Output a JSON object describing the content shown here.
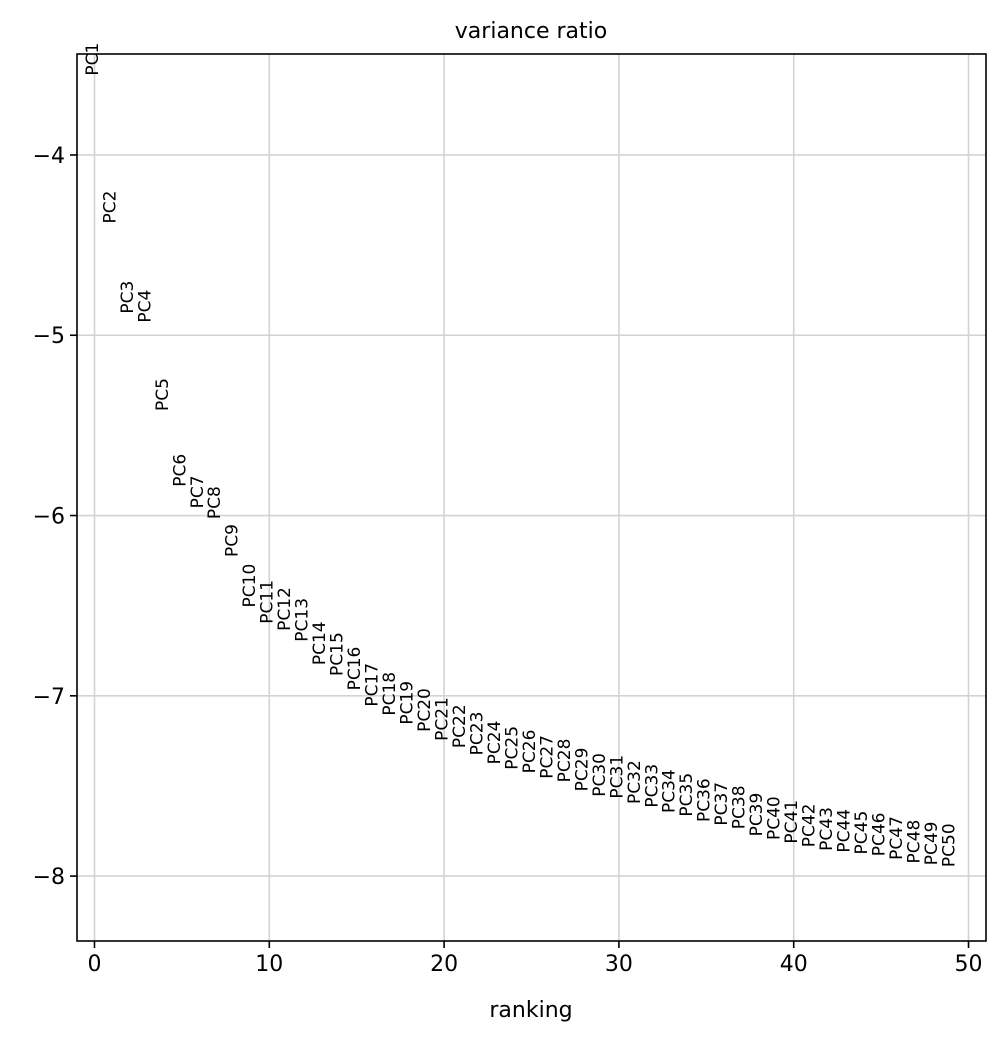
{
  "chart_data": {
    "type": "scatter",
    "title": "variance ratio",
    "xlabel": "ranking",
    "ylabel": "",
    "xlim": [
      -1,
      51
    ],
    "ylim": [
      -8.36,
      -3.44
    ],
    "x_ticks": [
      0,
      10,
      20,
      30,
      40,
      50
    ],
    "x_tick_labels": [
      "0",
      "10",
      "20",
      "30",
      "40",
      "50"
    ],
    "y_ticks": [
      -4,
      -5,
      -6,
      -7,
      -8
    ],
    "y_tick_labels": [
      "−4",
      "−5",
      "−6",
      "−7",
      "−8"
    ],
    "grid": true,
    "colors": {
      "grid": "#d3d3d3",
      "axis": "#000000",
      "text": "#000000"
    },
    "points": [
      {
        "x": 0,
        "y": -3.56,
        "label": "PC1"
      },
      {
        "x": 1,
        "y": -4.38,
        "label": "PC2"
      },
      {
        "x": 2,
        "y": -4.88,
        "label": "PC3"
      },
      {
        "x": 3,
        "y": -4.93,
        "label": "PC4"
      },
      {
        "x": 4,
        "y": -5.42,
        "label": "PC5"
      },
      {
        "x": 5,
        "y": -5.84,
        "label": "PC6"
      },
      {
        "x": 6,
        "y": -5.96,
        "label": "PC7"
      },
      {
        "x": 7,
        "y": -6.02,
        "label": "PC8"
      },
      {
        "x": 8,
        "y": -6.23,
        "label": "PC9"
      },
      {
        "x": 9,
        "y": -6.51,
        "label": "PC10"
      },
      {
        "x": 10,
        "y": -6.6,
        "label": "PC11"
      },
      {
        "x": 11,
        "y": -6.64,
        "label": "PC12"
      },
      {
        "x": 12,
        "y": -6.7,
        "label": "PC13"
      },
      {
        "x": 13,
        "y": -6.83,
        "label": "PC14"
      },
      {
        "x": 14,
        "y": -6.89,
        "label": "PC15"
      },
      {
        "x": 15,
        "y": -6.97,
        "label": "PC16"
      },
      {
        "x": 16,
        "y": -7.06,
        "label": "PC17"
      },
      {
        "x": 17,
        "y": -7.11,
        "label": "PC18"
      },
      {
        "x": 18,
        "y": -7.16,
        "label": "PC19"
      },
      {
        "x": 19,
        "y": -7.2,
        "label": "PC20"
      },
      {
        "x": 20,
        "y": -7.25,
        "label": "PC21"
      },
      {
        "x": 21,
        "y": -7.29,
        "label": "PC22"
      },
      {
        "x": 22,
        "y": -7.33,
        "label": "PC23"
      },
      {
        "x": 23,
        "y": -7.38,
        "label": "PC24"
      },
      {
        "x": 24,
        "y": -7.41,
        "label": "PC25"
      },
      {
        "x": 25,
        "y": -7.43,
        "label": "PC26"
      },
      {
        "x": 26,
        "y": -7.46,
        "label": "PC27"
      },
      {
        "x": 27,
        "y": -7.48,
        "label": "PC28"
      },
      {
        "x": 28,
        "y": -7.53,
        "label": "PC29"
      },
      {
        "x": 29,
        "y": -7.56,
        "label": "PC30"
      },
      {
        "x": 30,
        "y": -7.57,
        "label": "PC31"
      },
      {
        "x": 31,
        "y": -7.6,
        "label": "PC32"
      },
      {
        "x": 32,
        "y": -7.62,
        "label": "PC33"
      },
      {
        "x": 33,
        "y": -7.65,
        "label": "PC34"
      },
      {
        "x": 34,
        "y": -7.67,
        "label": "PC35"
      },
      {
        "x": 35,
        "y": -7.7,
        "label": "PC36"
      },
      {
        "x": 36,
        "y": -7.72,
        "label": "PC37"
      },
      {
        "x": 37,
        "y": -7.74,
        "label": "PC38"
      },
      {
        "x": 38,
        "y": -7.78,
        "label": "PC39"
      },
      {
        "x": 39,
        "y": -7.8,
        "label": "PC40"
      },
      {
        "x": 40,
        "y": -7.82,
        "label": "PC41"
      },
      {
        "x": 41,
        "y": -7.84,
        "label": "PC42"
      },
      {
        "x": 42,
        "y": -7.86,
        "label": "PC43"
      },
      {
        "x": 43,
        "y": -7.87,
        "label": "PC44"
      },
      {
        "x": 44,
        "y": -7.88,
        "label": "PC45"
      },
      {
        "x": 45,
        "y": -7.89,
        "label": "PC46"
      },
      {
        "x": 46,
        "y": -7.91,
        "label": "PC47"
      },
      {
        "x": 47,
        "y": -7.93,
        "label": "PC48"
      },
      {
        "x": 48,
        "y": -7.94,
        "label": "PC49"
      },
      {
        "x": 49,
        "y": -7.95,
        "label": "PC50"
      }
    ]
  }
}
